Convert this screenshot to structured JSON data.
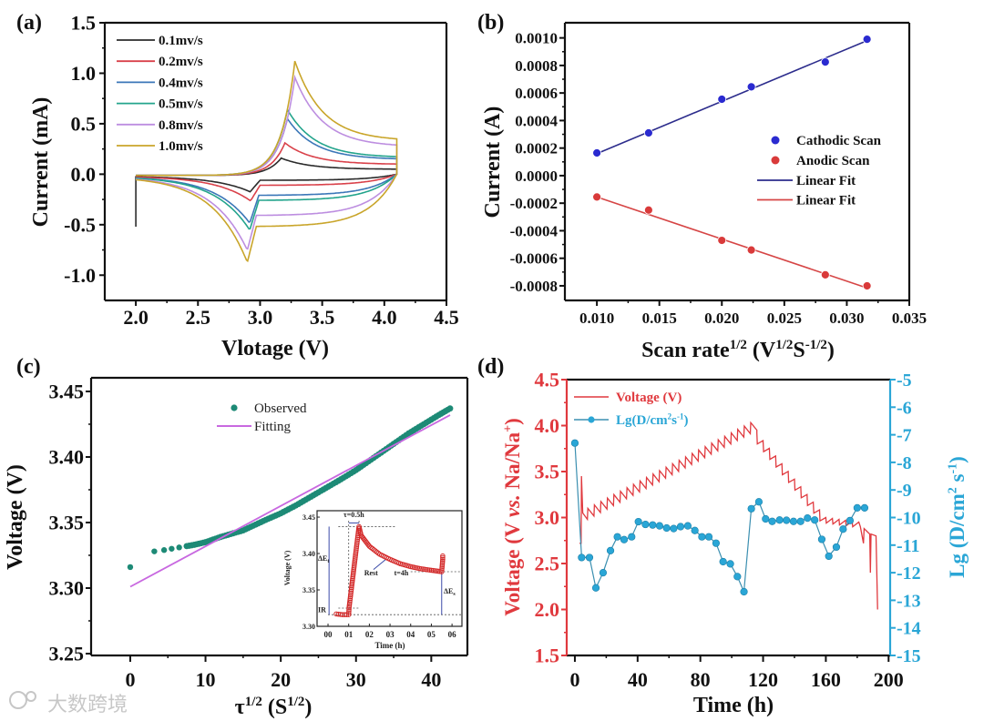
{
  "watermark": "大数跨境",
  "chart_data": [
    {
      "panel": "(a)",
      "type": "line",
      "xlabel_parts": [
        {
          "text": "Vlotage (V)"
        }
      ],
      "ylabel_parts": [
        {
          "text": "Current (mA)"
        }
      ],
      "xlim": [
        1.75,
        4.5
      ],
      "ylim": [
        -1.25,
        1.5
      ],
      "xticks": [
        "2.0",
        "2.5",
        "3.0",
        "3.5",
        "4.0",
        "4.5"
      ],
      "yticks": [
        "-1.0",
        "-0.5",
        "0.0",
        "0.5",
        "1.0",
        "1.5"
      ],
      "legend_position": "top-left",
      "voltage_window": [
        2.0,
        4.1
      ],
      "series": [
        {
          "name": "0.1mv/s",
          "color": "#2b2b2b",
          "anodic_peak": [
            3.17,
            0.16
          ],
          "anodic_end": 0.05,
          "cathodic_peak": [
            2.93,
            -0.16
          ],
          "cathodic_plateau": -0.06
        },
        {
          "name": "0.2mv/s",
          "color": "#d9414a",
          "anodic_peak": [
            3.2,
            0.31
          ],
          "anodic_end": 0.1,
          "cathodic_peak": [
            2.93,
            -0.25
          ],
          "cathodic_plateau": -0.11
        },
        {
          "name": "0.4mv/s",
          "color": "#3b77b8",
          "anodic_peak": [
            3.22,
            0.55
          ],
          "anodic_end": 0.15,
          "cathodic_peak": [
            2.92,
            -0.47
          ],
          "cathodic_plateau": -0.21
        },
        {
          "name": "0.5mv/s",
          "color": "#23a48c",
          "anodic_peak": [
            3.22,
            0.64
          ],
          "anodic_end": 0.17,
          "cathodic_peak": [
            2.92,
            -0.54
          ],
          "cathodic_plateau": -0.26
        },
        {
          "name": "0.8mv/s",
          "color": "#bd8ee0",
          "anodic_peak": [
            3.28,
            0.96
          ],
          "anodic_end": 0.28,
          "cathodic_peak": [
            2.9,
            -0.74
          ],
          "cathodic_plateau": -0.41
        },
        {
          "name": "1.0mv/s",
          "color": "#c9a52a",
          "anodic_peak": [
            3.28,
            1.12
          ],
          "anodic_end": 0.34,
          "cathodic_peak": [
            2.9,
            -0.86
          ],
          "cathodic_plateau": -0.52
        }
      ]
    },
    {
      "panel": "(b)",
      "type": "scatter",
      "xlabel_parts": [
        {
          "text": "Scan rate"
        },
        {
          "text": "1/2",
          "sup": true
        },
        {
          "text": " (V"
        },
        {
          "text": "1/2",
          "sup": true
        },
        {
          "text": "S"
        },
        {
          "text": "-1/2",
          "sup": true
        },
        {
          "text": ")"
        }
      ],
      "ylabel_parts": [
        {
          "text": "Current (A)"
        }
      ],
      "xlim": [
        0.00744,
        0.035
      ],
      "ylim": [
        -0.000906,
        0.00111
      ],
      "xticks": [
        "0.010",
        "0.015",
        "0.020",
        "0.025",
        "0.030",
        "0.035"
      ],
      "yticks": [
        "-0.0008",
        "-0.0006",
        "-0.0004",
        "-0.0002",
        "0.0000",
        "0.0002",
        "0.0004",
        "0.0006",
        "0.0008",
        "0.0010"
      ],
      "legend_position": "right",
      "x": [
        0.01,
        0.01414,
        0.02,
        0.02236,
        0.02828,
        0.03162
      ],
      "series": [
        {
          "name": "Cathodic Scan",
          "color": "#2a2ad0",
          "values": [
            0.000165,
            0.00031,
            0.000555,
            0.000645,
            0.000825,
            0.00099
          ]
        },
        {
          "name": "Anodic Scan",
          "color": "#d93a3a",
          "values": [
            -0.000155,
            -0.00025,
            -0.00047,
            -0.00054,
            -0.00072,
            -0.0008
          ]
        }
      ],
      "fits": [
        {
          "name": "Linear Fit",
          "color": "#2c2c8c",
          "points": [
            [
              0.01,
              0.00016
            ],
            [
              0.0316,
              0.00098
            ]
          ]
        },
        {
          "name": "Linear Fit",
          "color": "#d64545",
          "points": [
            [
              0.01,
              -0.000155
            ],
            [
              0.0316,
              -0.000815
            ]
          ]
        }
      ]
    },
    {
      "panel": "(c)",
      "type": "scatter",
      "xlabel_parts": [
        {
          "text": "τ"
        },
        {
          "text": "1/2",
          "sup": true
        },
        {
          "text": " (S"
        },
        {
          "text": "1/2",
          "sup": true
        },
        {
          "text": ")"
        }
      ],
      "ylabel_parts": [
        {
          "text": "Voltage (V)"
        }
      ],
      "xlim": [
        -5.2,
        44.8
      ],
      "ylim": [
        3.2486,
        3.4604
      ],
      "xticks": [
        "0",
        "10",
        "20",
        "30",
        "40"
      ],
      "yticks": [
        "3.25",
        "3.30",
        "3.35",
        "3.40",
        "3.45"
      ],
      "legend_position": "top-center",
      "observed": {
        "name": "Observed",
        "color": "#1d8a76",
        "points": [
          [
            0,
            3.316
          ],
          [
            3.2,
            3.328
          ],
          [
            4.5,
            3.329
          ],
          [
            5.5,
            3.33
          ],
          [
            6.5,
            3.331
          ],
          [
            7.5,
            3.332
          ],
          [
            8.5,
            3.333
          ],
          [
            10,
            3.335
          ],
          [
            12,
            3.339
          ],
          [
            15,
            3.344
          ],
          [
            18,
            3.352
          ],
          [
            20,
            3.357
          ],
          [
            22,
            3.363
          ],
          [
            25,
            3.373
          ],
          [
            28,
            3.383
          ],
          [
            30,
            3.39
          ],
          [
            33,
            3.402
          ],
          [
            35,
            3.41
          ],
          [
            37,
            3.418
          ],
          [
            39,
            3.425
          ],
          [
            41,
            3.432
          ],
          [
            42.5,
            3.437
          ]
        ]
      },
      "fitting": {
        "name": "Fitting",
        "color": "#c868e0",
        "points": [
          [
            0,
            3.301
          ],
          [
            42.5,
            3.432
          ]
        ]
      },
      "inset": {
        "xlabel": "Time (h)",
        "ylabel": "Voltage (V)",
        "xlim": [
          -0.53,
          6.48
        ],
        "ylim": [
          3.3,
          3.4588
        ],
        "xticks": [
          "00",
          "01",
          "02",
          "03",
          "04",
          "05",
          "06"
        ],
        "yticks": [
          "3.30",
          "3.35",
          "3.40",
          "3.45"
        ],
        "color": "#d42a2a",
        "points": [
          [
            0.4,
            3.317
          ],
          [
            0.7,
            3.316
          ],
          [
            1.0,
            3.316
          ],
          [
            1.02,
            3.326
          ],
          [
            1.5,
            3.437
          ],
          [
            1.6,
            3.425
          ],
          [
            2.0,
            3.41
          ],
          [
            2.5,
            3.399
          ],
          [
            3.0,
            3.392
          ],
          [
            3.5,
            3.386
          ],
          [
            4.0,
            3.382
          ],
          [
            4.5,
            3.379
          ],
          [
            5.0,
            3.377
          ],
          [
            5.5,
            3.375
          ],
          [
            5.55,
            3.392
          ],
          [
            5.55,
            3.399
          ]
        ],
        "annotations": {
          "tau": "τ=0.5h",
          "delta_et": "ΔE",
          "delta_et_sub": "t",
          "ir": "IR",
          "rest": "Rest",
          "t4h": "t=4h",
          "delta_es": "ΔE",
          "delta_es_sub": "s"
        }
      }
    },
    {
      "panel": "(d)",
      "type": "line",
      "xlabel_parts": [
        {
          "text": "Time (h)"
        }
      ],
      "ylabel_parts": [
        {
          "text": "Voltage (V "
        },
        {
          "text": "vs.",
          "italic": true
        },
        {
          "text": " Na/Na"
        },
        {
          "text": "+",
          "sup": true
        },
        {
          "text": ")"
        }
      ],
      "y2label_parts": [
        {
          "text": "Lg (D/cm"
        },
        {
          "text": "2",
          "sup": true
        },
        {
          "text": " s"
        },
        {
          "text": "-1",
          "sup": true
        },
        {
          "text": ")"
        }
      ],
      "xlim": [
        -5.2,
        201
      ],
      "ylim": [
        1.5,
        4.5
      ],
      "y2lim": [
        -15,
        -5
      ],
      "xticks": [
        "0",
        "40",
        "80",
        "120",
        "160",
        "200"
      ],
      "yticks": [
        "1.5",
        "2.0",
        "2.5",
        "3.0",
        "3.5",
        "4.0",
        "4.5"
      ],
      "y2ticks": [
        "-15",
        "-14",
        "-13",
        "-12",
        "-11",
        "-10",
        "-9",
        "-8",
        "-7",
        "-6",
        "-5"
      ],
      "legend_position": "top-left",
      "voltage": {
        "name": "Voltage (V)",
        "color": "#e0393e",
        "head_points": [
          [
            3,
            2.72
          ],
          [
            4,
            2.72
          ],
          [
            4.2,
            3.45
          ],
          [
            5,
            3.05
          ],
          [
            8,
            2.98
          ]
        ],
        "segments": [
          {
            "t0": 8,
            "t1": 116,
            "v0": 2.98,
            "v1": 3.95,
            "pulses": 26,
            "jump": 0.12
          },
          {
            "t0": 116,
            "t1": 160,
            "v0": 3.92,
            "v1": 3.0,
            "pulses": 11,
            "jump": -0.12
          },
          {
            "t0": 160,
            "t1": 181,
            "v0": 3.0,
            "v1": 2.95,
            "pulses": 5,
            "jump": -0.06
          }
        ],
        "tail_points": [
          [
            182,
            2.9
          ],
          [
            184,
            2.72
          ],
          [
            184.4,
            2.88
          ],
          [
            188,
            2.82
          ],
          [
            188.4,
            2.4
          ],
          [
            188.8,
            2.82
          ],
          [
            192,
            2.8
          ],
          [
            193,
            2.0
          ]
        ]
      },
      "diffusion": {
        "name": "Lg(D/cm²s⁻¹)",
        "legend_parts": [
          {
            "text": "Lg(D/cm"
          },
          {
            "text": "2",
            "sup": true
          },
          {
            "text": "s"
          },
          {
            "text": "-1",
            "sup": true
          },
          {
            "text": ")"
          }
        ],
        "color": "#2aa6d6",
        "points": [
          [
            0,
            -7.3
          ],
          [
            4.3,
            -11.45
          ],
          [
            9.3,
            -11.45
          ],
          [
            13.4,
            -12.55
          ],
          [
            18,
            -12.0
          ],
          [
            22.7,
            -11.2
          ],
          [
            27.1,
            -10.7
          ],
          [
            31.4,
            -10.8
          ],
          [
            36.2,
            -10.7
          ],
          [
            40.5,
            -10.15
          ],
          [
            45,
            -10.25
          ],
          [
            49.6,
            -10.27
          ],
          [
            54,
            -10.3
          ],
          [
            58.5,
            -10.38
          ],
          [
            63,
            -10.4
          ],
          [
            67.4,
            -10.33
          ],
          [
            72,
            -10.3
          ],
          [
            76.5,
            -10.47
          ],
          [
            81,
            -10.7
          ],
          [
            85.4,
            -10.7
          ],
          [
            90,
            -10.93
          ],
          [
            94.5,
            -11.6
          ],
          [
            99.1,
            -11.68
          ],
          [
            103.6,
            -12.14
          ],
          [
            107.8,
            -12.69
          ],
          [
            112.5,
            -9.68
          ],
          [
            117.3,
            -9.43
          ],
          [
            121.6,
            -10.05
          ],
          [
            125.8,
            -10.14
          ],
          [
            130.5,
            -10.09
          ],
          [
            134.9,
            -10.1
          ],
          [
            139.4,
            -10.14
          ],
          [
            143.9,
            -10.14
          ],
          [
            148.3,
            -10.02
          ],
          [
            152.9,
            -10.09
          ],
          [
            157.4,
            -10.79
          ],
          [
            161.9,
            -11.4
          ],
          [
            166.7,
            -11.07
          ],
          [
            171,
            -10.42
          ],
          [
            175.4,
            -10.11
          ],
          [
            180,
            -9.65
          ],
          [
            184.7,
            -9.65
          ]
        ]
      }
    }
  ]
}
